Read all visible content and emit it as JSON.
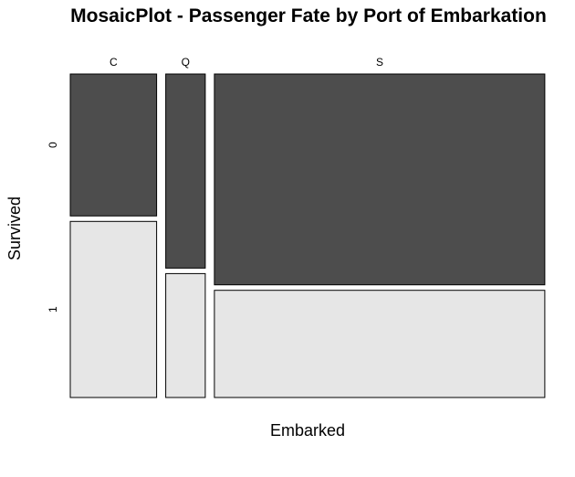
{
  "chart_data": {
    "type": "mosaic",
    "title": "MosaicPlot - Passenger Fate by Port of Embarkation",
    "xlabel": "Embarked",
    "ylabel": "Survived",
    "categories": [
      "C",
      "Q",
      "S"
    ],
    "category_shares": [
      0.1893,
      0.0866,
      0.7241
    ],
    "levels": [
      "0",
      "1"
    ],
    "colors": {
      "0": "#4d4d4d",
      "1": "#e6e6e6"
    },
    "proportions": [
      {
        "category": "C",
        "0": 0.4464,
        "1": 0.5536
      },
      {
        "category": "Q",
        "0": 0.6104,
        "1": 0.3896
      },
      {
        "category": "S",
        "0": 0.663,
        "1": 0.337
      }
    ]
  }
}
